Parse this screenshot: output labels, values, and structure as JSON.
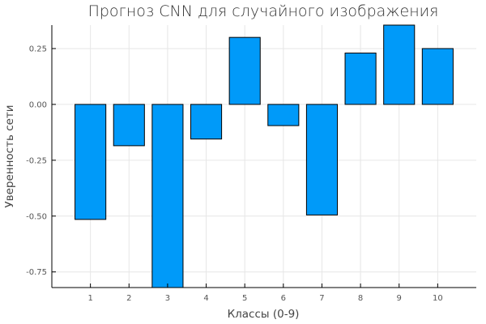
{
  "chart_data": {
    "type": "bar",
    "title": "Прогноз CNN для случайного изображения",
    "xlabel": "Классы (0-9)",
    "ylabel": "Уверенность сети",
    "categories": [
      "1",
      "2",
      "3",
      "4",
      "5",
      "6",
      "7",
      "8",
      "9",
      "10"
    ],
    "values": [
      -0.515,
      -0.185,
      -0.82,
      -0.155,
      0.3,
      -0.095,
      -0.495,
      0.23,
      0.355,
      0.25
    ],
    "ylim": [
      -0.82,
      0.355
    ],
    "yticks": [
      0.25,
      0.0,
      -0.25,
      -0.5,
      -0.75
    ],
    "ytick_labels": [
      "0.25",
      "0.00",
      "-0.25",
      "-0.50",
      "-0.75"
    ],
    "xlim": [
      0,
      11
    ],
    "grid": true,
    "legend": false,
    "bar_color": "#009af9"
  }
}
